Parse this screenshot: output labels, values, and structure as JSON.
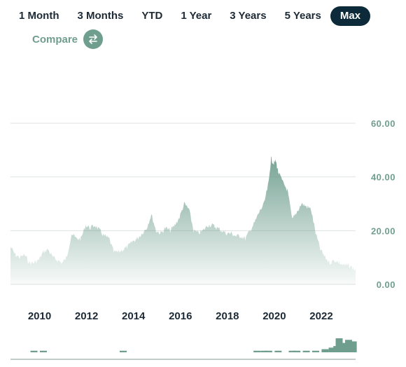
{
  "range_buttons": [
    {
      "label": "1 Month",
      "active": false
    },
    {
      "label": "3 Months",
      "active": false
    },
    {
      "label": "YTD",
      "active": false
    },
    {
      "label": "1 Year",
      "active": false
    },
    {
      "label": "3 Years",
      "active": false
    },
    {
      "label": "5 Years",
      "active": false
    },
    {
      "label": "Max",
      "active": true
    }
  ],
  "compare": {
    "label": "Compare",
    "icon": "swap-arrows-icon"
  },
  "colors": {
    "accent": "#6f9e8f",
    "active_button": "#0d2a3a",
    "text": "#1d2a35",
    "gridline": "#dde3e1"
  },
  "chart_data": {
    "type": "area",
    "title": "",
    "xlabel": "",
    "ylabel": "",
    "ylim": [
      0,
      60
    ],
    "xlim": [
      2009.0,
      2023.7
    ],
    "y_ticks": [
      "60.00",
      "40.00",
      "20.00",
      "0.00"
    ],
    "y_tick_values": [
      60,
      40,
      20,
      0
    ],
    "x_ticks": [
      "2010",
      "2012",
      "2014",
      "2016",
      "2018",
      "2020",
      "2022"
    ],
    "x_tick_values": [
      2010,
      2012,
      2014,
      2016,
      2018,
      2020,
      2022
    ],
    "grid": true,
    "series": [
      {
        "x": [
          2009.0,
          2009.2,
          2009.4,
          2009.6,
          2009.8,
          2010.0,
          2010.2,
          2010.4,
          2010.6,
          2010.8,
          2011.0,
          2011.2,
          2011.4,
          2011.6,
          2011.8,
          2012.0,
          2012.2,
          2012.4,
          2012.6,
          2012.8,
          2013.0,
          2013.2,
          2013.4,
          2013.6,
          2013.8,
          2014.0,
          2014.2,
          2014.4,
          2014.6,
          2014.8,
          2015.0,
          2015.2,
          2015.4,
          2015.6,
          2015.8,
          2016.0,
          2016.2,
          2016.4,
          2016.6,
          2016.8,
          2017.0,
          2017.2,
          2017.4,
          2017.6,
          2017.8,
          2018.0,
          2018.2,
          2018.4,
          2018.6,
          2018.8,
          2019.0,
          2019.2,
          2019.4,
          2019.6,
          2019.8,
          2020.0,
          2020.1,
          2020.2,
          2020.3,
          2020.4,
          2020.6,
          2020.8,
          2021.0,
          2021.2,
          2021.4,
          2021.6,
          2021.8,
          2022.0,
          2022.2,
          2022.4,
          2022.6,
          2022.8,
          2023.0,
          2023.2,
          2023.4,
          2023.6,
          2023.7
        ],
        "y": [
          14,
          11,
          10,
          11,
          8,
          8,
          9,
          12,
          13,
          10,
          9,
          8,
          10,
          19,
          17,
          17,
          22,
          21,
          22,
          20,
          18,
          17,
          12,
          12,
          13,
          14,
          16,
          17,
          19,
          21,
          26,
          20,
          19,
          21,
          20,
          22,
          25,
          30,
          28,
          20,
          19,
          20,
          22,
          22,
          21,
          20,
          19,
          19,
          18,
          18,
          17,
          20,
          23,
          27,
          30,
          38,
          47,
          45,
          46,
          42,
          38,
          35,
          24,
          27,
          30,
          29,
          28,
          19,
          13,
          10,
          8,
          9,
          8,
          7,
          7,
          6,
          5
        ]
      }
    ],
    "volume": {
      "x": [
        2010.0,
        2010.4,
        2013.8,
        2019.5,
        2019.8,
        2020.0,
        2020.4,
        2021.0,
        2021.2,
        2021.6,
        2022.0,
        2022.4,
        2022.7,
        2022.9,
        2023.0,
        2023.2,
        2023.4,
        2023.6
      ],
      "values": [
        1,
        1,
        1,
        1,
        1,
        1,
        1,
        1,
        1,
        1,
        1,
        2,
        3,
        4,
        9,
        6,
        8,
        7
      ]
    }
  }
}
